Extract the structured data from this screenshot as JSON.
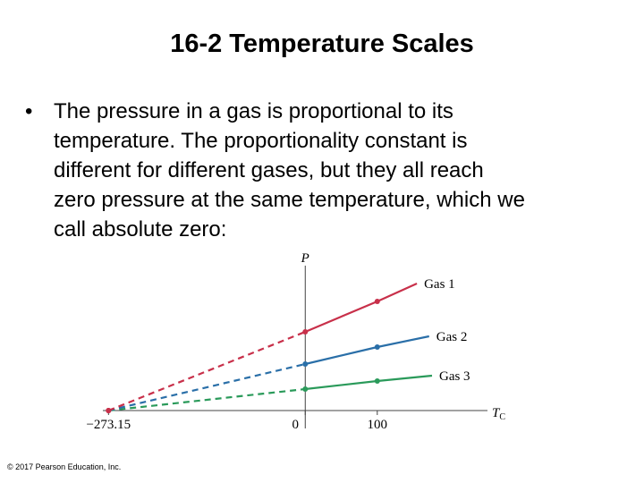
{
  "title": "16-2 Temperature Scales",
  "bullet_lines": [
    "The pressure in a gas is proportional to its",
    "temperature. The proportionality constant is",
    "different for different gases, but they all reach",
    "zero pressure at the same temperature, which we",
    "call absolute zero:"
  ],
  "copyright": "© 2017 Pearson Education, Inc.",
  "chart_data": {
    "type": "line",
    "y_label": "P",
    "x_label": "T",
    "x_label_subscript": "C",
    "xlim": [
      -281,
      253
    ],
    "ylim": [
      0,
      162
    ],
    "xticks": [
      {
        "value": -273.15,
        "label": "−273.15"
      },
      0,
      100
    ],
    "series": [
      {
        "name": "Gas 1",
        "color": "#c8304a",
        "x": [
          -273.15,
          0,
          100,
          155
        ],
        "values": [
          0,
          88,
          122,
          142
        ]
      },
      {
        "name": "Gas 2",
        "color": "#2a6fa8",
        "x": [
          -273.15,
          0,
          100,
          172
        ],
        "values": [
          0,
          52,
          71,
          83
        ]
      },
      {
        "name": "Gas 3",
        "color": "#2a9a5a",
        "x": [
          -273.15,
          0,
          100,
          176
        ],
        "values": [
          0,
          24,
          33,
          39
        ]
      }
    ]
  }
}
